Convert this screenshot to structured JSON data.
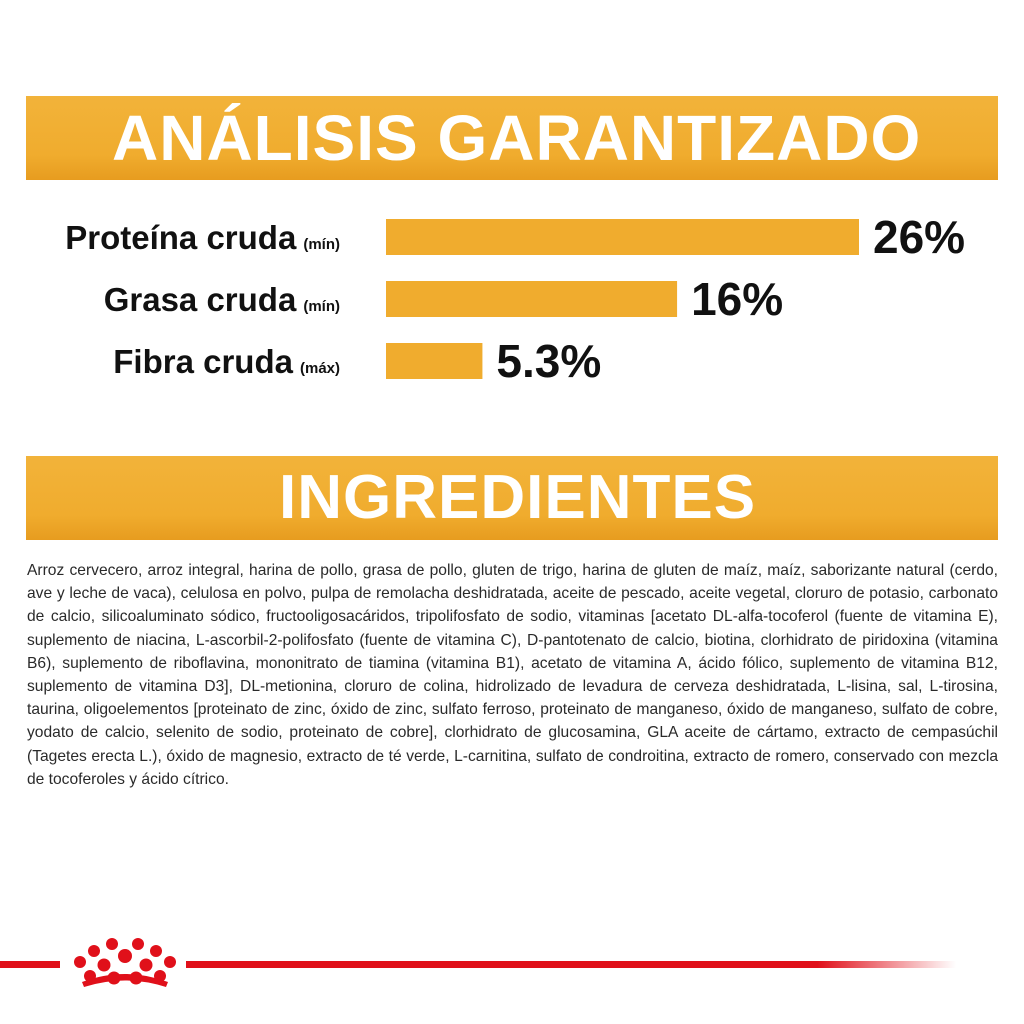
{
  "analysis": {
    "title": "ANÁLISIS GARANTIZADO"
  },
  "ingredients": {
    "title": "INGREDIENTES",
    "text": "Arroz cervecero, arroz integral, harina de pollo, grasa de pollo, gluten de trigo, harina de gluten de maíz, maíz, saborizante natural (cerdo, ave y leche de vaca), celulosa en polvo, pulpa de remolacha deshidratada, aceite de pescado, aceite vegetal, cloruro de potasio, carbonato de calcio, silicoaluminato sódico, fructooligosacáridos, tripolifosfato de sodio, vitaminas [acetato DL-alfa-tocoferol (fuente de vitamina E), suplemento de niacina, L-ascorbil-2-polifosfato (fuente de vitamina C), D-pantotenato de calcio, biotina, clorhidrato de piridoxina (vitamina B6), suplemento de riboflavina, mononitrato de tiamina (vitamina B1), acetato de vitamina A, ácido fólico, suplemento de vitamina B12, suplemento de vitamina D3], DL-metionina, cloruro de colina, hidrolizado de levadura de cerveza deshidratada, L-lisina, sal, L-tirosina, taurina, oligoelementos [proteinato de zinc, óxido de zinc, sulfato ferroso, proteinato de manganeso, óxido de manganeso, sulfato de cobre, yodato de calcio, selenito de sodio, proteinato de cobre], clorhidrato de glucosamina, GLA aceite de cártamo, extracto de cempasúchil (Tagetes erecta L.), óxido de magnesio, extracto de té verde, L-carnitina, sulfato de condroitina, extracto de romero, conservado con mezcla de tocoferoles y ácido cítrico."
  },
  "chart_data": {
    "type": "bar",
    "orientation": "horizontal",
    "categories": [
      "Proteína cruda",
      "Grasa cruda",
      "Fibra cruda"
    ],
    "qualifiers": [
      "(mín)",
      "(mín)",
      "(máx)"
    ],
    "values": [
      26,
      16,
      5.3
    ],
    "value_labels": [
      "26%",
      "16%",
      "5.3%"
    ],
    "xlim": [
      0,
      26
    ],
    "grid": false,
    "bar_color": "#f0ac2e"
  },
  "colors": {
    "banner": "#f0ac2e",
    "bar": "#f0ac2e",
    "footer_red": "#e0101a"
  },
  "footer": {
    "logo_icon": "royal-crown-icon"
  }
}
